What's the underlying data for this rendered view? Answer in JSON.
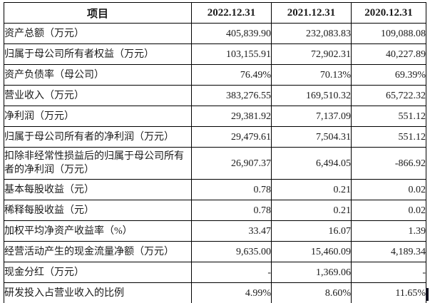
{
  "table": {
    "columns": [
      "项目",
      "2022.12.31",
      "2021.12.31",
      "2020.12.31"
    ],
    "rows": [
      {
        "label": "资产总额（万元）",
        "values": [
          "405,839.90",
          "232,083.83",
          "109,088.08"
        ]
      },
      {
        "label": "归属于母公司所有者权益（万元）",
        "values": [
          "103,155.91",
          "72,902.31",
          "40,227.89"
        ]
      },
      {
        "label": "资产负债率（母公司）",
        "values": [
          "76.49%",
          "70.13%",
          "69.39%"
        ]
      },
      {
        "label": "营业收入（万元）",
        "values": [
          "383,276.55",
          "169,510.32",
          "65,722.32"
        ]
      },
      {
        "label": "净利润（万元）",
        "values": [
          "29,381.92",
          "7,137.09",
          "551.12"
        ]
      },
      {
        "label": "归属于母公司所有者的净利润（万元）",
        "values": [
          "29,479.61",
          "7,504.31",
          "551.12"
        ]
      },
      {
        "label": "扣除非经常性损益后的归属于母公司所有者的净利润（万元）",
        "values": [
          "26,907.37",
          "6,494.05",
          "-866.92"
        ]
      },
      {
        "label": "基本每股收益（元）",
        "values": [
          "0.78",
          "0.21",
          "0.02"
        ]
      },
      {
        "label": "稀释每股收益（元）",
        "values": [
          "0.78",
          "0.21",
          "0.02"
        ]
      },
      {
        "label": "加权平均净资产收益率（%）",
        "values": [
          "33.47",
          "16.07",
          "1.39"
        ]
      },
      {
        "label": "经营活动产生的现金流量净额（万元）",
        "values": [
          "9,635.00",
          "15,460.09",
          "4,189.34"
        ]
      },
      {
        "label": "现金分红（万元）",
        "values": [
          "-",
          "1,369.06",
          "-"
        ]
      },
      {
        "label": "研发投入占营业收入的比例",
        "values": [
          "4.99%",
          "8.60%",
          "11.65%"
        ]
      }
    ]
  },
  "colors": {
    "border": "#000000",
    "text": "#1a1a1a",
    "background": "#ffffff"
  }
}
